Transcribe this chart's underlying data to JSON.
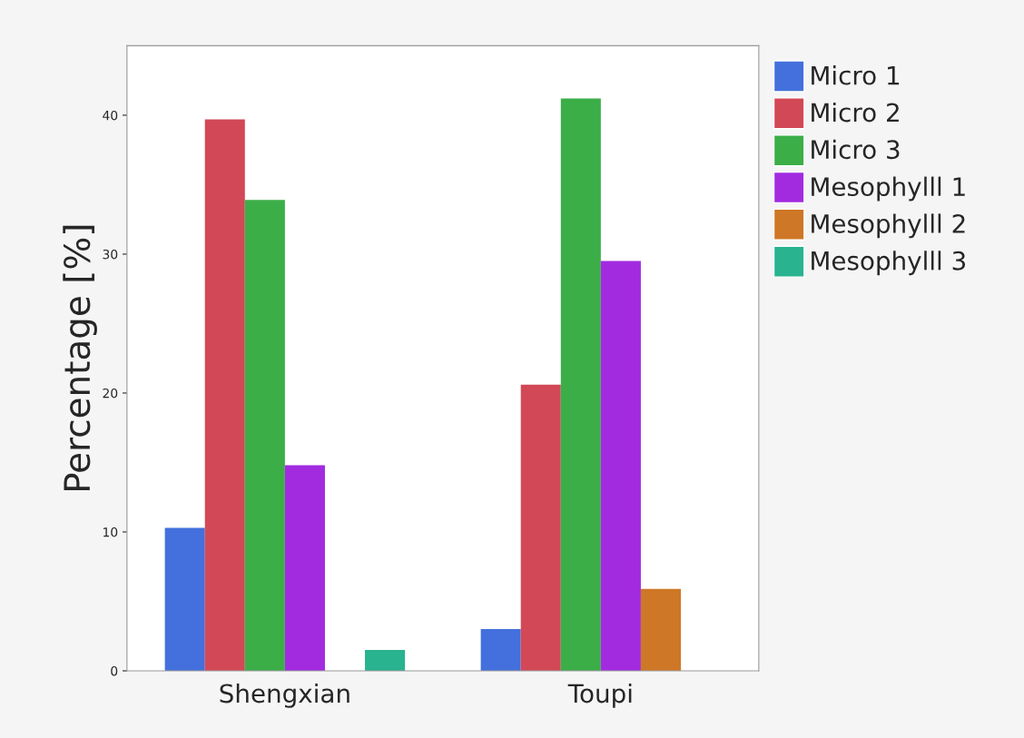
{
  "chart_data": {
    "type": "bar",
    "ylabel": "Percentage [%]",
    "categories": [
      "Shengxian",
      "Toupi"
    ],
    "series": [
      {
        "name": "Micro 1",
        "color": "#4370dc",
        "values": [
          10.3,
          3.0
        ]
      },
      {
        "name": "Micro 2",
        "color": "#d24856",
        "values": [
          39.7,
          20.6
        ]
      },
      {
        "name": "Micro 3",
        "color": "#3cae48",
        "values": [
          33.9,
          41.2
        ]
      },
      {
        "name": "Mesophylll 1",
        "color": "#a22be0",
        "values": [
          14.8,
          29.5
        ]
      },
      {
        "name": "Mesophylll 2",
        "color": "#ce7726",
        "values": [
          0,
          5.9
        ]
      },
      {
        "name": "Mesophylll 3",
        "color": "#29b38f",
        "values": [
          1.5,
          0
        ]
      }
    ],
    "ylim": [
      0,
      45
    ],
    "yticks": [
      0,
      10,
      20,
      30,
      40
    ],
    "grid": false,
    "legend": "top right"
  }
}
